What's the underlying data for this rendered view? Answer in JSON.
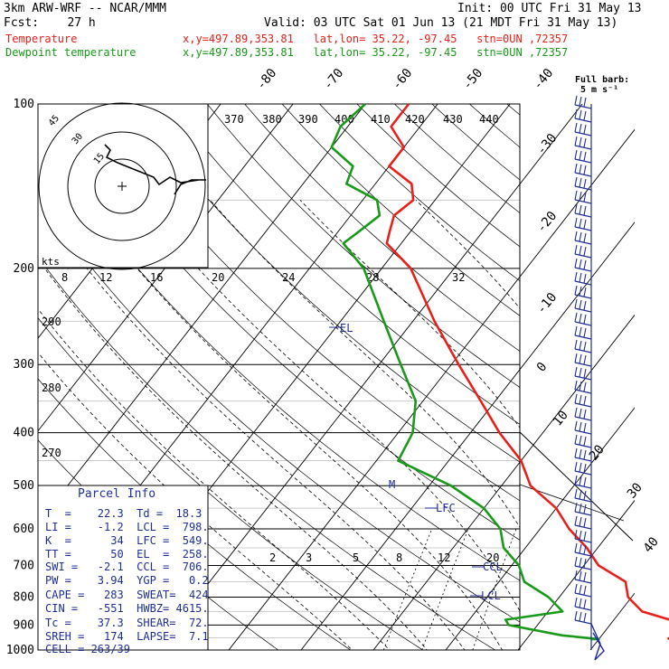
{
  "header": {
    "model": "3km ARW-WRF -- NCAR/MMM",
    "init": "Init: 00 UTC Fri 31 May 13",
    "fcst": "Fcst:    27 h",
    "valid": "Valid: 03 UTC Sat 01 Jun 13 (21 MDT Fri 31 May 13)",
    "temp_label": "Temperature",
    "temp_info": "x,y=497.89,353.81   lat,lon= 35.22, -97.45   stn=0UN ,72357",
    "dew_label": "Dewpoint temperature",
    "dew_info": "x,y=497.89,353.81   lat,lon= 35.22, -97.45   stn=0UN ,72357",
    "barb_label_1": "Full barb:",
    "barb_label_2": "5 m s⁻¹"
  },
  "colors": {
    "temperature": "#e8201a",
    "dewpoint": "#1a9a1a",
    "text_blue": "#1f2f9a",
    "parcel_fill": "#ffffff"
  },
  "axis": {
    "pressure_labels": [
      "100",
      "200",
      "300",
      "400",
      "500",
      "600",
      "700",
      "800",
      "900",
      "1000"
    ],
    "isotherm_labels": [
      "-80",
      "-70",
      "-60",
      "-50",
      "-40",
      "-30",
      "-20",
      "-10",
      "0",
      "10",
      "20",
      "30",
      "40"
    ],
    "theta_labels": [
      "370",
      "380",
      "390",
      "400",
      "410",
      "420",
      "430",
      "440"
    ],
    "mixing_labels_upper": [
      "8",
      "12",
      "16",
      "20",
      "24",
      "28",
      "32"
    ],
    "mixing_labels_lower": [
      "2",
      "3",
      "5",
      "8",
      "12",
      "20"
    ],
    "dry_adiabat_labels": [
      "290",
      "280",
      "270"
    ],
    "kts_label": "kts",
    "hodo_ring_labels": [
      "15",
      "30",
      "45"
    ]
  },
  "annotations": {
    "el": "EL",
    "lfc": "LFC",
    "ccl": "CCL",
    "lcl": "LCL",
    "m": "M"
  },
  "parcel": {
    "title": "Parcel Info",
    "rows": [
      "T  =    22.3  Td =  18.3",
      "LI =    -1.2  LCL =  798.",
      "K  =      34  LFC =  549.",
      "TT =      50  EL  =  258.",
      "SWI =   -2.1  CCL =  706.",
      "PW =    3.94  YGP =   0.2",
      "CAPE =   283  SWEAT=  424",
      "CIN =   -551  HWBZ= 4615.",
      "Tc =    37.3  SHEAR=  72.",
      "SREH =   174  LAPSE=  7.1",
      "CELL = 263/39"
    ]
  },
  "chart_data": {
    "type": "line",
    "chart_kind": "skew-T log-p sounding",
    "y_scale": "log",
    "ylim": [
      1000,
      100
    ],
    "series": [
      {
        "name": "Temperature",
        "p": [
          955,
          955,
          940,
          920,
          885,
          850,
          800,
          750,
          700,
          650,
          600,
          550,
          500,
          450,
          400,
          350,
          300,
          250,
          200,
          180,
          170,
          160,
          150,
          140,
          130,
          120,
          110,
          100
        ],
        "t": [
          29.5,
          29.5,
          30,
          30.5,
          28.5,
          23,
          19.5,
          17.5,
          12,
          8.5,
          4,
          0,
          -6,
          -10,
          -16,
          -22,
          -29,
          -37,
          -46,
          -52,
          -53,
          -54,
          -53,
          -55,
          -60,
          -60,
          -64,
          -64
        ]
      },
      {
        "name": "Dewpoint temperature",
        "p": [
          955,
          955,
          940,
          900,
          880,
          850,
          800,
          750,
          700,
          650,
          600,
          550,
          500,
          450,
          400,
          350,
          300,
          250,
          200,
          180,
          170,
          160,
          150,
          140,
          130,
          120,
          110,
          100
        ],
        "t": [
          19,
          20,
          14.5,
          6,
          5,
          12,
          8.5,
          3.5,
          1,
          -3,
          -5.5,
          -10,
          -17,
          -27,
          -28,
          -31,
          -37,
          -44,
          -52.5,
          -58,
          -57,
          -56,
          -58,
          -64,
          -65,
          -70,
          -71,
          -70
        ]
      }
    ],
    "wind_barbs": {
      "units": "full barb = 5 m s-1"
    }
  }
}
